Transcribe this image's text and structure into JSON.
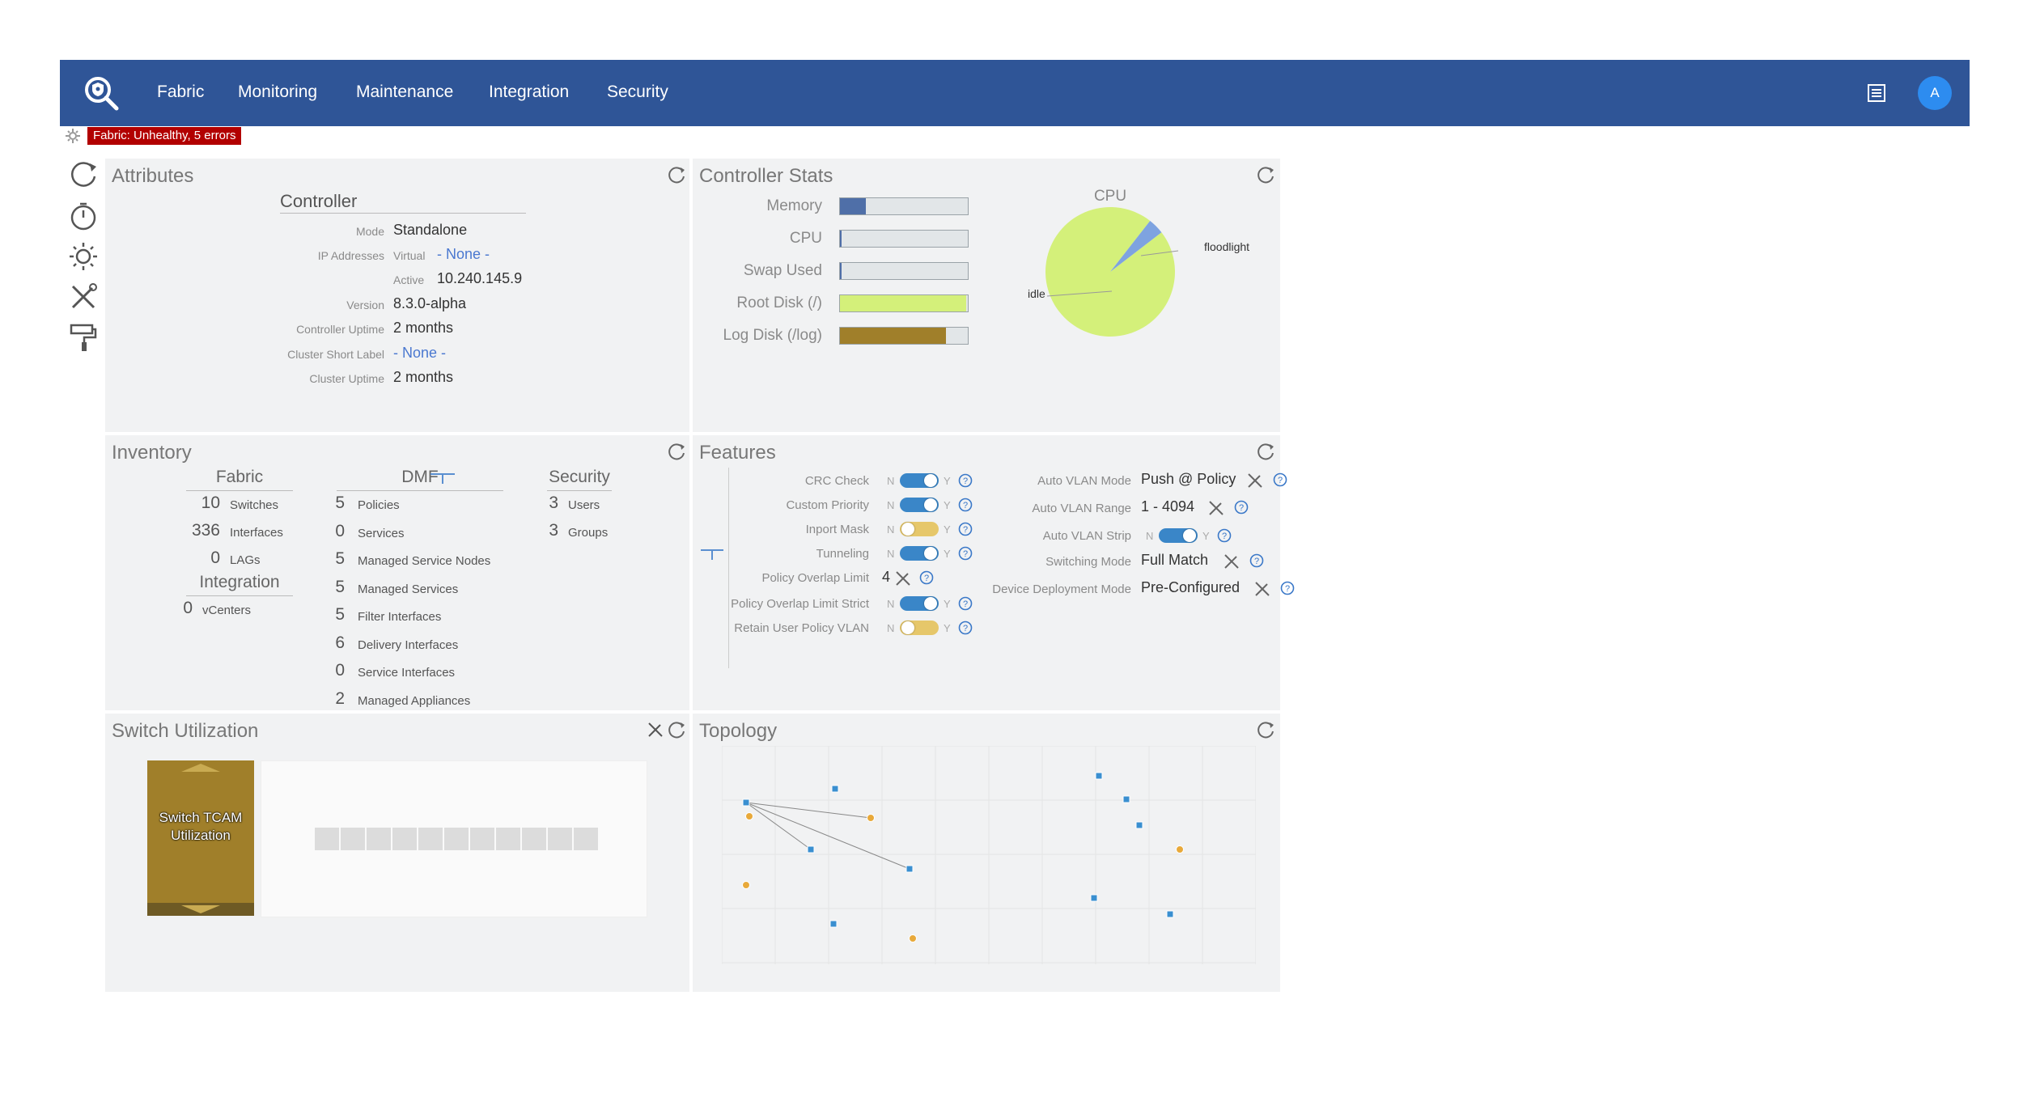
{
  "nav": {
    "items": [
      "Fabric",
      "Monitoring",
      "Maintenance",
      "Integration",
      "Security"
    ],
    "avatar_initial": "A"
  },
  "status": {
    "badge": "Fabric: Unhealthy, 5 errors"
  },
  "attributes": {
    "title": "Attributes",
    "section_title": "Controller",
    "rows": [
      {
        "label": "Mode",
        "value": "Standalone"
      },
      {
        "label": "IP Addresses",
        "sublabel": "Virtual",
        "value": "- None -"
      },
      {
        "sublabel": "Active",
        "value": "10.240.145.9"
      },
      {
        "label": "Version",
        "value": "8.3.0-alpha"
      },
      {
        "label": "Controller Uptime",
        "value": "2 months"
      },
      {
        "label": "Cluster Short Label",
        "value": "- None -"
      },
      {
        "label": "Cluster Uptime",
        "value": "2 months"
      }
    ]
  },
  "controller_stats": {
    "title": "Controller Stats",
    "bars": [
      {
        "label": "Memory",
        "fill": 0.2,
        "color": "#4f6fa8"
      },
      {
        "label": "CPU",
        "fill": 0.01,
        "color": "#4f6fa8"
      },
      {
        "label": "Swap Used",
        "fill": 0.01,
        "color": "#4f6fa8"
      },
      {
        "label": "Root Disk (/)",
        "fill": 0.99,
        "color": "#d4f07a"
      },
      {
        "label": "Log Disk (/log)",
        "fill": 0.83,
        "color": "#a07f2a"
      }
    ],
    "cpu_chart": {
      "title": "CPU",
      "slices": [
        {
          "label": "idle",
          "value": 96,
          "color": "#d4f07a"
        },
        {
          "label": "floodlight",
          "value": 4,
          "color": "#7ea3e0"
        }
      ]
    }
  },
  "inventory": {
    "title": "Inventory",
    "fabric": {
      "heading": "Fabric",
      "rows": [
        {
          "num": "10",
          "label": "Switches"
        },
        {
          "num": "336",
          "label": "Interfaces"
        },
        {
          "num": "0",
          "label": "LAGs"
        }
      ]
    },
    "integration": {
      "heading": "Integration",
      "rows": [
        {
          "num": "0",
          "label": "vCenters"
        }
      ]
    },
    "dmf": {
      "heading": "DMF",
      "rows": [
        {
          "num": "5",
          "label": "Policies"
        },
        {
          "num": "0",
          "label": "Services"
        },
        {
          "num": "5",
          "label": "Managed Service Nodes"
        },
        {
          "num": "5",
          "label": "Managed Services"
        },
        {
          "num": "5",
          "label": "Filter Interfaces"
        },
        {
          "num": "6",
          "label": "Delivery Interfaces"
        },
        {
          "num": "0",
          "label": "Service Interfaces"
        },
        {
          "num": "2",
          "label": "Managed Appliances"
        }
      ]
    },
    "security": {
      "heading": "Security",
      "rows": [
        {
          "num": "3",
          "label": "Users"
        },
        {
          "num": "3",
          "label": "Groups"
        }
      ]
    }
  },
  "features": {
    "title": "Features",
    "left": [
      {
        "label": "CRC Check",
        "type": "toggle",
        "on": true
      },
      {
        "label": "Custom Priority",
        "type": "toggle",
        "on": true
      },
      {
        "label": "Inport Mask",
        "type": "toggle",
        "on": false
      },
      {
        "label": "Tunneling",
        "type": "toggle",
        "on": true
      },
      {
        "label": "Policy Overlap Limit",
        "type": "value",
        "value": "4"
      },
      {
        "label": "Policy Overlap Limit Strict",
        "type": "toggle",
        "on": true
      },
      {
        "label": "Retain User Policy VLAN",
        "type": "toggle",
        "on": false
      }
    ],
    "right": [
      {
        "label": "Auto VLAN Mode",
        "type": "value",
        "value": "Push @ Policy"
      },
      {
        "label": "Auto VLAN Range",
        "type": "value",
        "value": "1 - 4094"
      },
      {
        "label": "Auto VLAN Strip",
        "type": "toggle",
        "on": true
      },
      {
        "label": "Switching Mode",
        "type": "value",
        "value": "Full Match"
      },
      {
        "label": "Device Deployment Mode",
        "type": "value",
        "value": "Pre-Configured"
      }
    ],
    "toggle_n": "N",
    "toggle_y": "Y",
    "colors": {
      "on": "#3a86c8",
      "off": "#e6c76a"
    }
  },
  "switch_utilization": {
    "title": "Switch Utilization",
    "card_label": "Switch TCAM Utilization"
  },
  "topology": {
    "title": "Topology"
  }
}
